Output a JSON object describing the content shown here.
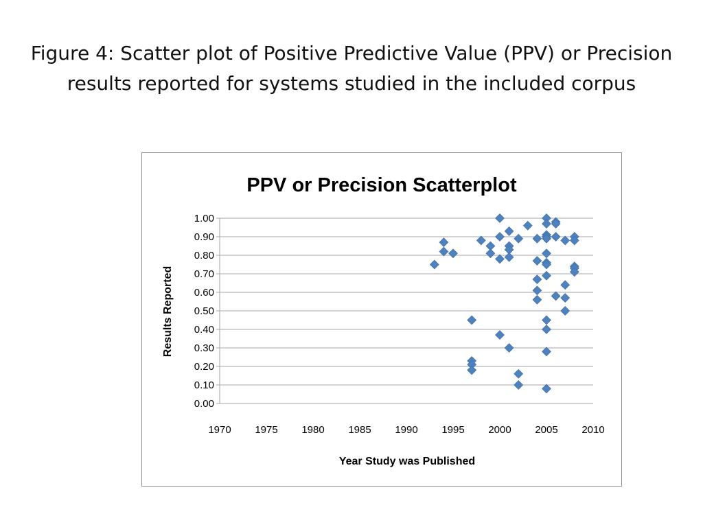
{
  "slide": {
    "title": "Figure 4: Scatter plot of Positive Predictive Value (PPV) or Precision results reported for systems studied in the included corpus"
  },
  "colors": {
    "marker": "#4f81bd",
    "grid": "#a6a6a6",
    "text": "#000000"
  },
  "chart_data": {
    "type": "scatter",
    "title": "PPV or Precision Scatterplot",
    "xlabel": "Year Study was Published",
    "ylabel": "Results Reported",
    "xlim": [
      1970,
      2010
    ],
    "ylim": [
      0,
      1
    ],
    "xticks": [
      1970,
      1975,
      1980,
      1985,
      1990,
      1995,
      2000,
      2005,
      2010
    ],
    "yticks": [
      0,
      0.1,
      0.2,
      0.3,
      0.4,
      0.5,
      0.6,
      0.7,
      0.8,
      0.9,
      1.0
    ],
    "ytick_labels": [
      "0.00",
      "0.10",
      "0.20",
      "0.30",
      "0.40",
      "0.50",
      "0.60",
      "0.70",
      "0.80",
      "0.90",
      "1.00"
    ],
    "grid": "horizontal",
    "legend": "none",
    "marker": "diamond",
    "points": [
      {
        "x": 1993,
        "y": 0.75
      },
      {
        "x": 1994,
        "y": 0.87
      },
      {
        "x": 1994,
        "y": 0.82
      },
      {
        "x": 1995,
        "y": 0.81
      },
      {
        "x": 1997,
        "y": 0.45
      },
      {
        "x": 1997,
        "y": 0.23
      },
      {
        "x": 1997,
        "y": 0.21
      },
      {
        "x": 1997,
        "y": 0.18
      },
      {
        "x": 1998,
        "y": 0.88
      },
      {
        "x": 1999,
        "y": 0.85
      },
      {
        "x": 1999,
        "y": 0.81
      },
      {
        "x": 2000,
        "y": 1.0
      },
      {
        "x": 2000,
        "y": 0.9
      },
      {
        "x": 2000,
        "y": 0.78
      },
      {
        "x": 2000,
        "y": 0.37
      },
      {
        "x": 2001,
        "y": 0.93
      },
      {
        "x": 2001,
        "y": 0.85
      },
      {
        "x": 2001,
        "y": 0.83
      },
      {
        "x": 2001,
        "y": 0.79
      },
      {
        "x": 2001,
        "y": 0.3
      },
      {
        "x": 2002,
        "y": 0.89
      },
      {
        "x": 2002,
        "y": 0.16
      },
      {
        "x": 2002,
        "y": 0.1
      },
      {
        "x": 2003,
        "y": 0.96
      },
      {
        "x": 2004,
        "y": 0.89
      },
      {
        "x": 2004,
        "y": 0.77
      },
      {
        "x": 2004,
        "y": 0.67
      },
      {
        "x": 2004,
        "y": 0.61
      },
      {
        "x": 2004,
        "y": 0.56
      },
      {
        "x": 2005,
        "y": 1.0
      },
      {
        "x": 2005,
        "y": 0.97
      },
      {
        "x": 2005,
        "y": 0.91
      },
      {
        "x": 2005,
        "y": 0.9
      },
      {
        "x": 2005,
        "y": 0.89
      },
      {
        "x": 2005,
        "y": 0.81
      },
      {
        "x": 2005,
        "y": 0.76
      },
      {
        "x": 2005,
        "y": 0.75
      },
      {
        "x": 2005,
        "y": 0.69
      },
      {
        "x": 2005,
        "y": 0.45
      },
      {
        "x": 2005,
        "y": 0.4
      },
      {
        "x": 2005,
        "y": 0.28
      },
      {
        "x": 2005,
        "y": 0.08
      },
      {
        "x": 2006,
        "y": 0.98
      },
      {
        "x": 2006,
        "y": 0.97
      },
      {
        "x": 2006,
        "y": 0.9
      },
      {
        "x": 2006,
        "y": 0.58
      },
      {
        "x": 2007,
        "y": 0.88
      },
      {
        "x": 2007,
        "y": 0.64
      },
      {
        "x": 2007,
        "y": 0.57
      },
      {
        "x": 2007,
        "y": 0.5
      },
      {
        "x": 2008,
        "y": 0.9
      },
      {
        "x": 2008,
        "y": 0.88
      },
      {
        "x": 2008,
        "y": 0.74
      },
      {
        "x": 2008,
        "y": 0.73
      },
      {
        "x": 2008,
        "y": 0.71
      }
    ]
  }
}
